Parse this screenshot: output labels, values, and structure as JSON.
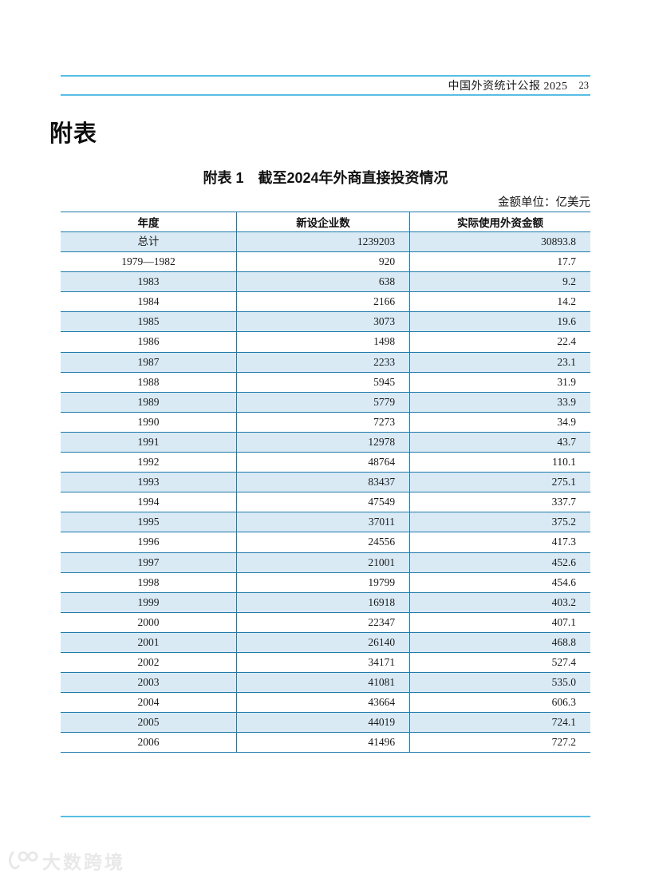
{
  "page_header": {
    "doc_title": "中国外资统计公报 2025",
    "page_number": "23"
  },
  "section_heading": "附表",
  "table": {
    "title": "附表 1　截至2024年外商直接投资情况",
    "unit_note": "金额单位：亿美元",
    "columns": [
      "年度",
      "新设企业数",
      "实际使用外资金额"
    ],
    "rows": [
      [
        "总计",
        "1239203",
        "30893.8"
      ],
      [
        "1979—1982",
        "920",
        "17.7"
      ],
      [
        "1983",
        "638",
        "9.2"
      ],
      [
        "1984",
        "2166",
        "14.2"
      ],
      [
        "1985",
        "3073",
        "19.6"
      ],
      [
        "1986",
        "1498",
        "22.4"
      ],
      [
        "1987",
        "2233",
        "23.1"
      ],
      [
        "1988",
        "5945",
        "31.9"
      ],
      [
        "1989",
        "5779",
        "33.9"
      ],
      [
        "1990",
        "7273",
        "34.9"
      ],
      [
        "1991",
        "12978",
        "43.7"
      ],
      [
        "1992",
        "48764",
        "110.1"
      ],
      [
        "1993",
        "83437",
        "275.1"
      ],
      [
        "1994",
        "47549",
        "337.7"
      ],
      [
        "1995",
        "37011",
        "375.2"
      ],
      [
        "1996",
        "24556",
        "417.3"
      ],
      [
        "1997",
        "21001",
        "452.6"
      ],
      [
        "1998",
        "19799",
        "454.6"
      ],
      [
        "1999",
        "16918",
        "403.2"
      ],
      [
        "2000",
        "22347",
        "407.1"
      ],
      [
        "2001",
        "26140",
        "468.8"
      ],
      [
        "2002",
        "34171",
        "527.4"
      ],
      [
        "2003",
        "41081",
        "535.0"
      ],
      [
        "2004",
        "43664",
        "606.3"
      ],
      [
        "2005",
        "44019",
        "724.1"
      ],
      [
        "2006",
        "41496",
        "727.2"
      ]
    ]
  },
  "watermark": {
    "text": "大数跨境",
    "logo": "100-smiley-logo"
  },
  "colors": {
    "rule_cyan": "#57bee3",
    "table_border_blue": "#1e7aa9",
    "row_stripe_blue": "#d9eaf5",
    "text": "#1a1a1a"
  }
}
